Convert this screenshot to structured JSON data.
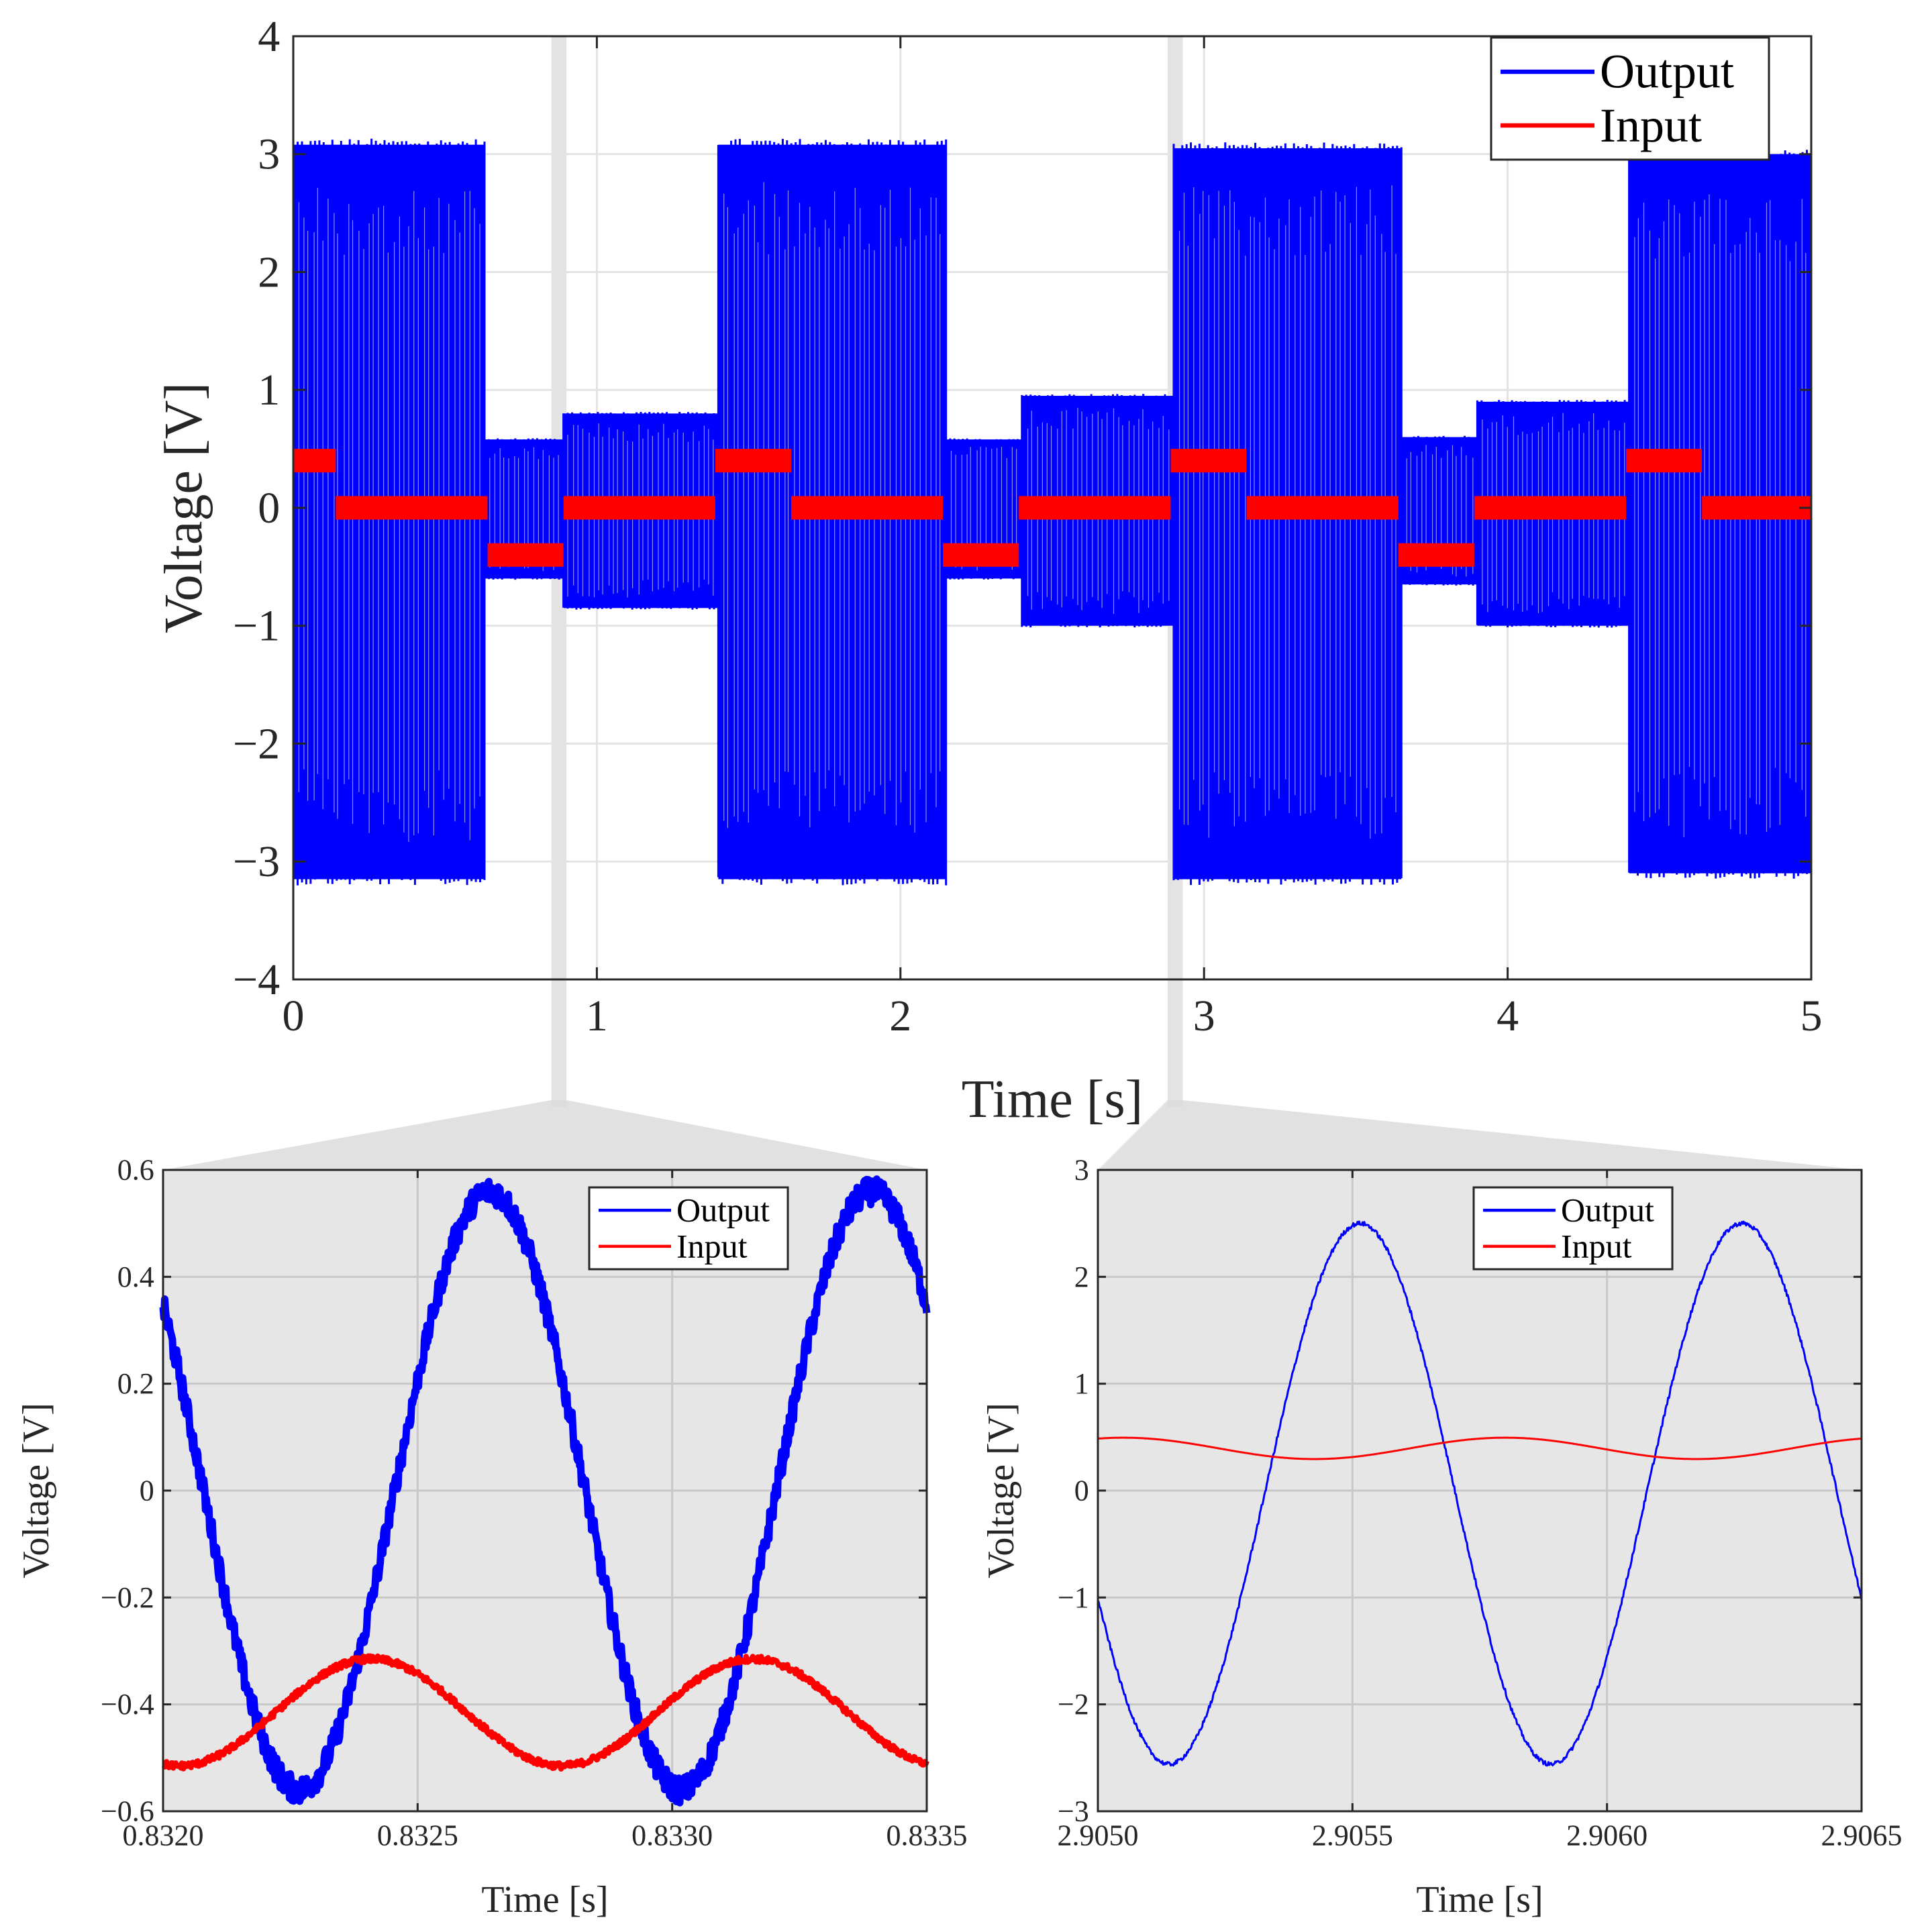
{
  "chart_data": [
    {
      "id": "main",
      "type": "line",
      "xlabel": "Time  [s]",
      "ylabel": "Voltage [V]",
      "xlim": [
        0,
        5
      ],
      "ylim": [
        -4,
        4
      ],
      "xticks": [
        0,
        1,
        2,
        3,
        4,
        5
      ],
      "xtick_labels": [
        "0",
        "1",
        "2",
        "3",
        "4",
        "5"
      ],
      "yticks": [
        -4,
        -3,
        -2,
        -1,
        0,
        1,
        2,
        3,
        4
      ],
      "ytick_labels": [
        "−4",
        "−3",
        "−2",
        "−1",
        "0",
        "1",
        "2",
        "3",
        "4"
      ],
      "grid": true,
      "legend_position": "top-right",
      "background": "#ffffff",
      "zoom_windows": [
        [
          0.85,
          0.9
        ],
        [
          2.88,
          2.93
        ]
      ],
      "series": [
        {
          "name": "Output",
          "color": "#0000ff",
          "style": "oscillating-envelope",
          "envelope": [
            [
              0.0,
              0.63,
              -3.15,
              3.08
            ],
            [
              0.63,
              0.89,
              -0.6,
              0.58
            ],
            [
              0.89,
              1.4,
              -0.85,
              0.8
            ],
            [
              1.4,
              2.15,
              -3.15,
              3.08
            ],
            [
              2.15,
              2.4,
              -0.6,
              0.58
            ],
            [
              2.4,
              2.9,
              -1.0,
              0.95
            ],
            [
              2.9,
              3.65,
              -3.15,
              3.05
            ],
            [
              3.65,
              3.9,
              -0.65,
              0.6
            ],
            [
              3.9,
              4.4,
              -1.0,
              0.9
            ],
            [
              4.4,
              5.0,
              -3.1,
              3.0
            ]
          ]
        },
        {
          "name": "Input",
          "color": "#ff0000",
          "style": "step-band",
          "segments": [
            [
              0.0,
              0.14,
              0.3,
              0.5
            ],
            [
              0.14,
              0.64,
              -0.1,
              0.1
            ],
            [
              0.64,
              0.89,
              -0.5,
              -0.3
            ],
            [
              0.89,
              1.39,
              -0.1,
              0.1
            ],
            [
              1.39,
              1.64,
              0.3,
              0.5
            ],
            [
              1.64,
              2.14,
              -0.1,
              0.1
            ],
            [
              2.14,
              2.39,
              -0.5,
              -0.3
            ],
            [
              2.39,
              2.89,
              -0.1,
              0.1
            ],
            [
              2.89,
              3.14,
              0.3,
              0.5
            ],
            [
              3.14,
              3.64,
              -0.1,
              0.1
            ],
            [
              3.64,
              3.89,
              -0.5,
              -0.3
            ],
            [
              3.89,
              4.39,
              -0.1,
              0.1
            ],
            [
              4.39,
              4.64,
              0.3,
              0.5
            ],
            [
              4.64,
              5.0,
              -0.1,
              0.1
            ]
          ]
        }
      ]
    },
    {
      "id": "zoom1",
      "type": "line",
      "xlabel": "Time [s]",
      "ylabel": "Voltage [V]",
      "xlim": [
        0.832,
        0.8335
      ],
      "ylim": [
        -0.6,
        0.6
      ],
      "xticks": [
        0.832,
        0.8325,
        0.833,
        0.8335
      ],
      "xtick_labels": [
        "0.8320",
        "0.8325",
        "0.8330",
        "0.8335"
      ],
      "yticks": [
        -0.6,
        -0.4,
        -0.2,
        0,
        0.2,
        0.4,
        0.6
      ],
      "ytick_labels": [
        "−0.6",
        "−0.4",
        "−0.2",
        "0",
        "0.2",
        "0.4",
        "0.6"
      ],
      "grid": true,
      "legend_position": "top-right",
      "background": "#e6e6e6",
      "series": [
        {
          "name": "Output",
          "color": "#0000ff",
          "style": "sine",
          "offset": 0.0,
          "amplitude": 0.56,
          "period": 0.00075,
          "peak_at": 0.832642,
          "noise": 0.025,
          "stroke_width": 11
        },
        {
          "name": "Input",
          "color": "#ff0000",
          "style": "sine",
          "offset": -0.415,
          "amplitude": 0.1,
          "period": 0.00075,
          "peak_at": 0.832408,
          "noise": 0.006,
          "stroke_width": 8
        }
      ]
    },
    {
      "id": "zoom2",
      "type": "line",
      "xlabel": "Time [s]",
      "ylabel": "Voltage [V]",
      "xlim": [
        2.905,
        2.9065
      ],
      "ylim": [
        -3,
        3
      ],
      "xticks": [
        2.905,
        2.9055,
        2.906,
        2.9065
      ],
      "xtick_labels": [
        "2.9050",
        "2.9055",
        "2.9060",
        "2.9065"
      ],
      "yticks": [
        -3,
        -2,
        -1,
        0,
        1,
        2,
        3
      ],
      "ytick_labels": [
        "−3",
        "−2",
        "−1",
        "0",
        "1",
        "2",
        "3"
      ],
      "grid": true,
      "legend_position": "top-right",
      "background": "#e6e6e6",
      "series": [
        {
          "name": "Output",
          "color": "#0000ff",
          "style": "sine",
          "offset": -0.03,
          "amplitude": 2.53,
          "period": 0.00075,
          "peak_at": 2.905515,
          "noise": 0.02,
          "stroke_width": 3
        },
        {
          "name": "Input",
          "color": "#ff0000",
          "style": "sine",
          "offset": 0.395,
          "amplitude": 0.1,
          "period": 0.00075,
          "peak_at": 2.90505,
          "noise": 0.0,
          "stroke_width": 3
        }
      ]
    }
  ]
}
